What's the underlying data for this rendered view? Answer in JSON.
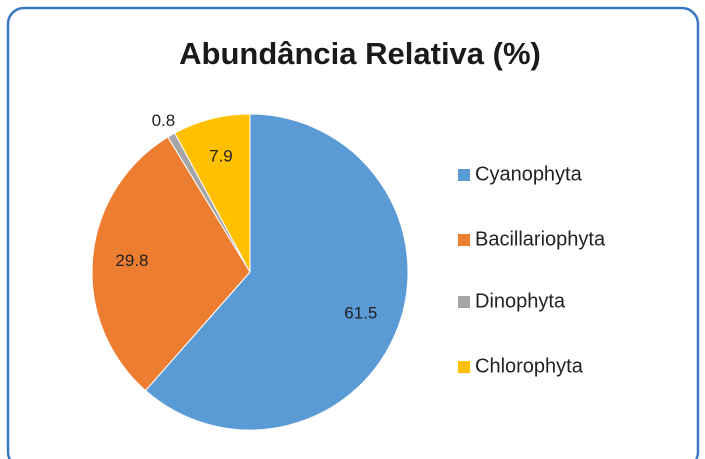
{
  "chart_data": {
    "type": "pie",
    "title": "Abundância Relativa (%)",
    "categories": [
      "Cyanophyta",
      "Bacillariophyta",
      "Dinophyta",
      "Chlorophyta"
    ],
    "values": [
      61.5,
      29.8,
      0.8,
      7.9
    ],
    "colors": [
      "#5b9bd5",
      "#ed7d31",
      "#a5a5a5",
      "#ffc000"
    ],
    "legend": "right"
  }
}
